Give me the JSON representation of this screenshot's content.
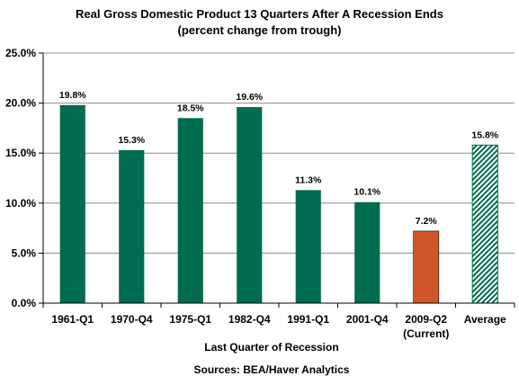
{
  "colors": {
    "standard_bar": "#006c4f",
    "current_bar": "#d0562a",
    "average_bar": "#006c4f",
    "grid": "#8c8c8c",
    "axis": "#000000",
    "text": "#000000"
  },
  "chart_data": {
    "type": "bar",
    "title": "Real Gross Domestic Product 13 Quarters After A Recession Ends",
    "subtitle": "(percent change from trough)",
    "xlabel": "Last Quarter of Recession",
    "ylabel": "",
    "source": "Sources:  BEA/Haver Analytics",
    "ylim": [
      0,
      25
    ],
    "ytick_values": [
      0,
      5,
      10,
      15,
      20,
      25
    ],
    "ytick_labels": [
      "0.0%",
      "5.0%",
      "10.0%",
      "15.0%",
      "20.0%",
      "25.0%"
    ],
    "grid": true,
    "legend": "none",
    "categories": [
      [
        "1961-Q1"
      ],
      [
        "1970-Q4"
      ],
      [
        "1975-Q1"
      ],
      [
        "1982-Q4"
      ],
      [
        "1991-Q1"
      ],
      [
        "2001-Q4"
      ],
      [
        "2009-Q2",
        "(Current)"
      ],
      [
        "Average"
      ]
    ],
    "values": [
      19.8,
      15.3,
      18.5,
      19.6,
      11.3,
      10.1,
      7.2,
      15.8
    ],
    "value_labels": [
      "19.8%",
      "15.3%",
      "18.5%",
      "19.6%",
      "11.3%",
      "10.1%",
      "7.2%",
      "15.8%"
    ],
    "bar_styles": [
      "standard",
      "standard",
      "standard",
      "standard",
      "standard",
      "standard",
      "current",
      "average"
    ]
  }
}
